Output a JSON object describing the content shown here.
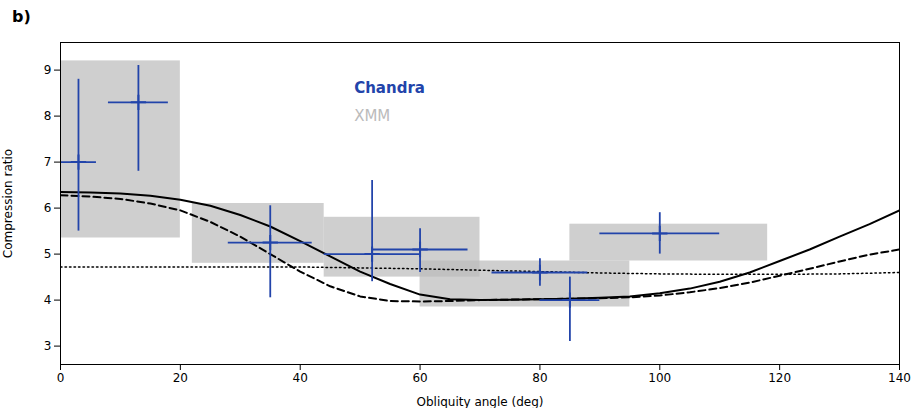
{
  "chart_data": {
    "type": "line",
    "title": "b)",
    "xlabel": "Obliquity angle (deg)",
    "ylabel": "Compression ratio",
    "xlim": [
      0,
      140
    ],
    "xticks": [
      0,
      20,
      40,
      60,
      80,
      100,
      120,
      140
    ],
    "ylim": [
      2.6,
      9.6
    ],
    "yticks": [
      3,
      4,
      5,
      6,
      7,
      8,
      9
    ],
    "series": [
      {
        "name": "XMM",
        "type": "box",
        "color": "#bbbbbb",
        "boxes": [
          {
            "x_lo": 0,
            "x_hi": 20,
            "y_lo": 5.35,
            "y_hi": 9.2
          },
          {
            "x_lo": 22,
            "x_hi": 44,
            "y_lo": 4.8,
            "y_hi": 6.1
          },
          {
            "x_lo": 44,
            "x_hi": 70,
            "y_lo": 4.5,
            "y_hi": 5.8
          },
          {
            "x_lo": 60,
            "x_hi": 95,
            "y_lo": 3.85,
            "y_hi": 4.85
          },
          {
            "x_lo": 85,
            "x_hi": 118,
            "y_lo": 4.85,
            "y_hi": 5.65
          }
        ]
      },
      {
        "type": "line",
        "line_style": "solid",
        "color": "#000000",
        "x": [
          0,
          5,
          10,
          15,
          20,
          25,
          30,
          35,
          40,
          45,
          50,
          55,
          60,
          65,
          70,
          75,
          80,
          85,
          90,
          95,
          100,
          105,
          110,
          115,
          120,
          125,
          130,
          135,
          140
        ],
        "values": [
          6.35,
          6.34,
          6.32,
          6.27,
          6.18,
          6.05,
          5.85,
          5.6,
          5.28,
          4.95,
          4.62,
          4.35,
          4.12,
          4.02,
          4.0,
          4.01,
          4.02,
          4.03,
          4.05,
          4.08,
          4.15,
          4.25,
          4.4,
          4.6,
          4.85,
          5.1,
          5.38,
          5.65,
          5.95
        ]
      },
      {
        "type": "line",
        "line_style": "dashed",
        "color": "#000000",
        "x": [
          0,
          5,
          10,
          15,
          20,
          25,
          30,
          35,
          40,
          45,
          50,
          55,
          60,
          65,
          70,
          75,
          80,
          85,
          90,
          95,
          100,
          105,
          110,
          115,
          120,
          125,
          130,
          135,
          140
        ],
        "values": [
          6.28,
          6.25,
          6.2,
          6.1,
          5.95,
          5.7,
          5.38,
          5.0,
          4.62,
          4.3,
          4.08,
          3.98,
          3.97,
          3.98,
          4.0,
          4.01,
          4.02,
          4.03,
          4.04,
          4.06,
          4.1,
          4.17,
          4.26,
          4.38,
          4.53,
          4.68,
          4.84,
          4.99,
          5.1
        ]
      },
      {
        "type": "line",
        "line_style": "dotted",
        "color": "#000000",
        "x": [
          0,
          10,
          20,
          30,
          40,
          50,
          60,
          70,
          80,
          90,
          100,
          110,
          120,
          130,
          140
        ],
        "values": [
          4.72,
          4.72,
          4.72,
          4.72,
          4.72,
          4.7,
          4.68,
          4.65,
          4.62,
          4.59,
          4.57,
          4.56,
          4.56,
          4.57,
          4.6
        ]
      },
      {
        "name": "Chandra",
        "type": "scatter",
        "marker": "plus",
        "color": "#2244aa",
        "x": [
          3,
          13,
          35,
          52,
          60,
          80,
          85,
          100
        ],
        "values": [
          7.0,
          8.3,
          5.25,
          5.0,
          5.1,
          4.6,
          4.0,
          5.45
        ],
        "xerr": [
          3,
          5,
          7,
          8,
          8,
          8,
          5,
          10
        ],
        "yerr_lo": [
          1.5,
          1.5,
          1.2,
          0.6,
          0.5,
          0.3,
          0.9,
          0.45
        ],
        "yerr_hi": [
          1.8,
          0.8,
          0.8,
          1.6,
          0.45,
          0.3,
          0.5,
          0.45
        ]
      }
    ]
  }
}
